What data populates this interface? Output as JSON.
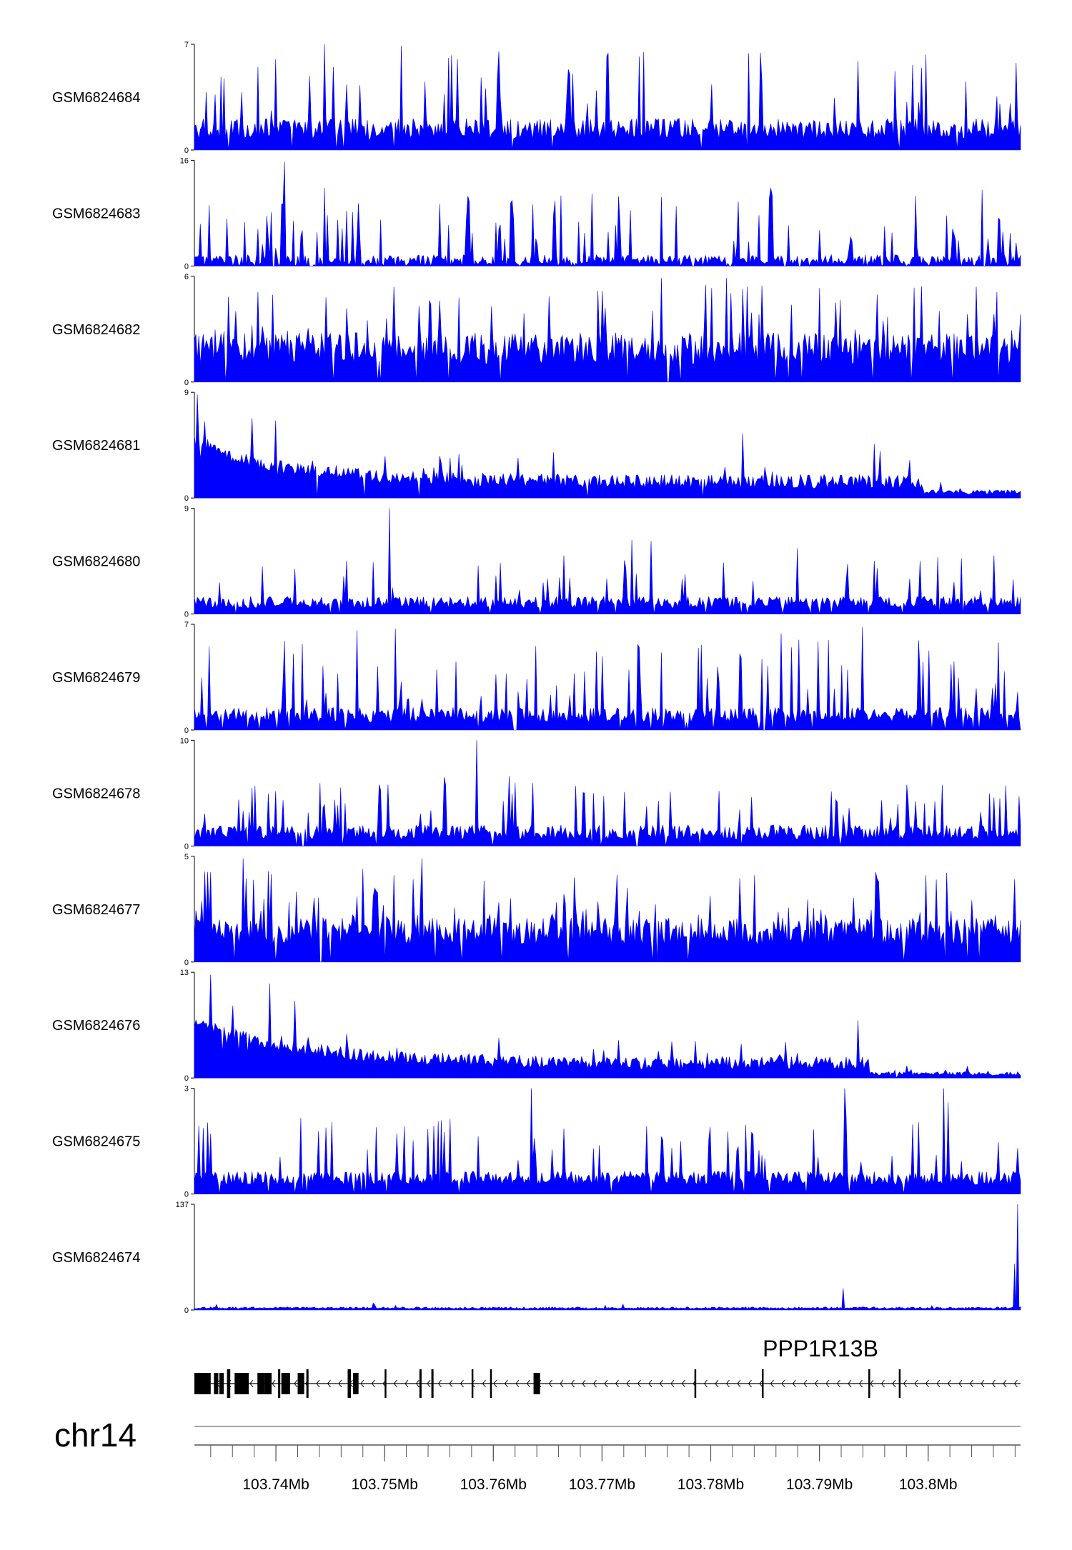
{
  "chart_data": {
    "type": "area",
    "title": "",
    "track_color": "#0000ff",
    "x_range_mb": [
      103.7325,
      103.8085
    ],
    "tracks": [
      {
        "name": "GSM6824684",
        "ylim": [
          0,
          7
        ],
        "ymax_label": "7",
        "ymin_label": "0",
        "profile": {
          "base": 0.7,
          "noise": 1.4,
          "peak_prob": 0.1,
          "peak_min": 2.5,
          "peak_max": 6.8,
          "gap_prob": 0.03,
          "fixed_peaks": [
            [
              103.7445,
              7.0
            ],
            [
              103.7515,
              6.9
            ],
            [
              103.7835,
              6.4
            ],
            [
              103.7935,
              5.9
            ]
          ]
        }
      },
      {
        "name": "GSM6824683",
        "ylim": [
          0,
          16
        ],
        "ymax_label": "16",
        "ymin_label": "0",
        "profile": {
          "base": 0.2,
          "noise": 1.5,
          "peak_prob": 0.16,
          "peak_min": 2.5,
          "peak_max": 11.0,
          "gap_prob": 0.11,
          "fixed_peaks": [
            [
              103.7408,
              15.8
            ],
            [
              103.7445,
              11.8
            ],
            [
              103.7855,
              11.8
            ],
            [
              103.805,
              11.5
            ]
          ]
        }
      },
      {
        "name": "GSM6824682",
        "ylim": [
          0,
          6
        ],
        "ymax_label": "6",
        "ymin_label": "0",
        "profile": {
          "base": 1.0,
          "noise": 1.8,
          "peak_prob": 0.12,
          "peak_min": 2.5,
          "peak_max": 5.5,
          "gap_prob": 0.03,
          "fixed_peaks": [
            [
              103.7508,
              5.4
            ],
            [
              103.7755,
              5.9
            ],
            [
              103.7795,
              5.5
            ],
            [
              103.7815,
              5.9
            ]
          ]
        }
      },
      {
        "name": "GSM6824681",
        "ylim": [
          0,
          9
        ],
        "ymax_label": "9",
        "ymin_label": "0",
        "profile": {
          "base": 0.8,
          "noise": 1.2,
          "peak_prob": 0.05,
          "peak_min": 1.8,
          "peak_max": 4.0,
          "gap_prob": 0.01,
          "decay": 3.5,
          "decay_len": 0.008,
          "tail_drop_start": 103.7995,
          "tail_scale": 0.35,
          "fixed_peaks": [
            [
              103.7328,
              8.8
            ],
            [
              103.7335,
              6.5
            ],
            [
              103.74,
              6.6
            ],
            [
              103.7378,
              6.8
            ],
            [
              103.783,
              5.5
            ],
            [
              103.795,
              4.6
            ]
          ]
        }
      },
      {
        "name": "GSM6824680",
        "ylim": [
          0,
          9
        ],
        "ymax_label": "9",
        "ymin_label": "0",
        "profile": {
          "base": 0.5,
          "noise": 1.0,
          "peak_prob": 0.08,
          "peak_min": 2.0,
          "peak_max": 5.0,
          "gap_prob": 0.05,
          "fixed_peaks": [
            [
              103.7505,
              9.0
            ],
            [
              103.749,
              4.4
            ],
            [
              103.7728,
              6.3
            ],
            [
              103.7745,
              6.2
            ],
            [
              103.788,
              5.6
            ]
          ]
        }
      },
      {
        "name": "GSM6824679",
        "ylim": [
          0,
          7
        ],
        "ymax_label": "7",
        "ymin_label": "0",
        "profile": {
          "base": 0.5,
          "noise": 1.0,
          "peak_prob": 0.14,
          "peak_min": 2.0,
          "peak_max": 6.0,
          "gap_prob": 0.05,
          "fixed_peaks": [
            [
              103.7475,
              6.6
            ],
            [
              103.751,
              6.7
            ],
            [
              103.7865,
              6.4
            ],
            [
              103.794,
              6.8
            ],
            [
              103.8065,
              5.8
            ]
          ]
        }
      },
      {
        "name": "GSM6824678",
        "ylim": [
          0,
          10
        ],
        "ymax_label": "10",
        "ymin_label": "0",
        "profile": {
          "base": 0.6,
          "noise": 1.4,
          "peak_prob": 0.1,
          "peak_min": 2.5,
          "peak_max": 6.0,
          "gap_prob": 0.02,
          "fixed_peaks": [
            [
              103.7585,
              10.0
            ],
            [
              103.7615,
              6.6
            ],
            [
              103.7555,
              6.5
            ],
            [
              103.7808,
              5.2
            ]
          ]
        }
      },
      {
        "name": "GSM6824677",
        "ylim": [
          0,
          5
        ],
        "ymax_label": "5",
        "ymin_label": "0",
        "profile": {
          "base": 0.8,
          "noise": 1.3,
          "peak_prob": 0.12,
          "peak_min": 2.0,
          "peak_max": 4.3,
          "gap_prob": 0.03,
          "fixed_peaks": [
            [
              103.737,
              4.9
            ],
            [
              103.7535,
              4.9
            ],
            [
              103.748,
              4.4
            ],
            [
              103.784,
              4.1
            ],
            [
              103.7955,
              3.8
            ]
          ]
        }
      },
      {
        "name": "GSM6824676",
        "ylim": [
          0,
          13
        ],
        "ymax_label": "13",
        "ymin_label": "0",
        "profile": {
          "base": 1.0,
          "noise": 1.6,
          "peak_prob": 0.05,
          "peak_min": 2.5,
          "peak_max": 5.5,
          "gap_prob": 0.01,
          "decay": 5.0,
          "decay_len": 0.01,
          "tail_drop_start": 103.7945,
          "tail_scale": 0.3,
          "fixed_peaks": [
            [
              103.734,
              12.7
            ],
            [
              103.7395,
              11.6
            ],
            [
              103.7418,
              9.5
            ],
            [
              103.736,
              8.9
            ],
            [
              103.7935,
              7.1
            ]
          ]
        }
      },
      {
        "name": "GSM6824675",
        "ylim": [
          0,
          3
        ],
        "ymax_label": "3",
        "ymin_label": "0",
        "profile": {
          "base": 0.25,
          "noise": 0.4,
          "peak_prob": 0.1,
          "peak_min": 0.9,
          "peak_max": 2.2,
          "gap_prob": 0.04,
          "fixed_peaks": [
            [
              103.7635,
              3.0
            ],
            [
              103.7923,
              3.0
            ],
            [
              103.8014,
              3.0
            ],
            [
              103.8018,
              2.6
            ],
            [
              103.78,
              1.9
            ]
          ]
        }
      },
      {
        "name": "GSM6824674",
        "ylim": [
          0,
          137
        ],
        "ymax_label": "137",
        "ymin_label": "0",
        "profile": {
          "base": 1.5,
          "noise": 2.5,
          "peak_prob": 0.01,
          "peak_min": 3.0,
          "peak_max": 8.0,
          "gap_prob": 0.0,
          "fixed_peaks": [
            [
              103.8082,
              137.0
            ],
            [
              103.8079,
              60.0
            ],
            [
              103.7922,
              28.0
            ],
            [
              103.7345,
              7.0
            ],
            [
              103.749,
              9.0
            ],
            [
              103.751,
              6.0
            ],
            [
              103.7703,
              6.0
            ]
          ]
        }
      }
    ],
    "gene_track": {
      "gene_name": "PPP1R13B",
      "strand": "-",
      "exons_mb": [
        [
          103.7325,
          103.734
        ],
        [
          103.7343,
          103.7347
        ],
        [
          103.7348,
          103.7352
        ],
        [
          103.7355,
          103.7358
        ],
        [
          103.7362,
          103.7375
        ],
        [
          103.7383,
          103.739
        ],
        [
          103.739,
          103.7396
        ],
        [
          103.7402,
          103.7404
        ],
        [
          103.7405,
          103.7413
        ],
        [
          103.742,
          103.7426
        ],
        [
          103.7428,
          103.743
        ],
        [
          103.7466,
          103.7469
        ],
        [
          103.7471,
          103.7476
        ],
        [
          103.75,
          103.7501
        ],
        [
          103.7532,
          103.7534
        ],
        [
          103.7543,
          103.7545
        ],
        [
          103.758,
          103.7581
        ],
        [
          103.7597,
          103.7598
        ],
        [
          103.7637,
          103.7643
        ],
        [
          103.7785,
          103.7786
        ],
        [
          103.7847,
          103.7848
        ],
        [
          103.7945,
          103.7946
        ],
        [
          103.7973,
          103.7974
        ]
      ]
    },
    "axis": {
      "chromosome": "chr14",
      "xlabel": "",
      "major_ticks_mb": [
        103.74,
        103.75,
        103.76,
        103.77,
        103.78,
        103.79,
        103.8
      ],
      "major_tick_labels": [
        "103.74Mb",
        "103.75Mb",
        "103.76Mb",
        "103.77Mb",
        "103.78Mb",
        "103.79Mb",
        "103.8Mb"
      ],
      "minor_tick_step_mb": 0.002
    }
  }
}
